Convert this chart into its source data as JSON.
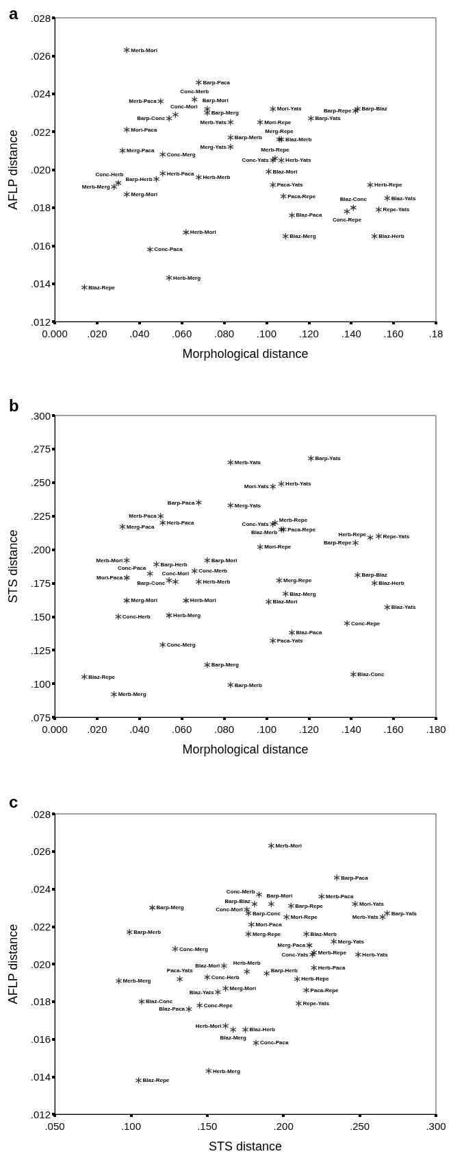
{
  "chart_data": [
    {
      "type": "scatter",
      "title": "a",
      "xlabel": "Morphological distance",
      "ylabel": "AFLP distance",
      "marker": "cross",
      "x": [
        0.143,
        0.054,
        0.048,
        0.083,
        0.072,
        0.072,
        0.068,
        0.142,
        0.121,
        0.141,
        0.151,
        0.107,
        0.109,
        0.101,
        0.112,
        0.014,
        0.157,
        0.03,
        0.066,
        0.051,
        0.057,
        0.045,
        0.138,
        0.103,
        0.068,
        0.054,
        0.062,
        0.051,
        0.149,
        0.107,
        0.028,
        0.034,
        0.05,
        0.104,
        0.083,
        0.034,
        0.032,
        0.106,
        0.083,
        0.034,
        0.097,
        0.103,
        0.108,
        0.103,
        0.153
      ],
      "series": [
        {
          "color": "#000000",
          "values": [
            0.0232,
            0.0227,
            0.0195,
            0.0217,
            0.023,
            0.0232,
            0.0246,
            0.0231,
            0.0227,
            0.018,
            0.0165,
            0.0216,
            0.0165,
            0.0199,
            0.0176,
            0.0138,
            0.0185,
            0.0193,
            0.0237,
            0.0208,
            0.0229,
            0.0158,
            0.0178,
            0.0205,
            0.0196,
            0.0143,
            0.0167,
            0.0198,
            0.0192,
            0.0205,
            0.0191,
            0.0263,
            0.0236,
            0.0206,
            0.0225,
            0.0187,
            0.021,
            0.0216,
            0.0212,
            0.0221,
            0.0225,
            0.0232,
            0.0186,
            0.0192,
            0.0179
          ]
        }
      ],
      "xlim": [
        0,
        0.18
      ],
      "xticks": [
        {
          "value": 0,
          "label": "0.000"
        },
        {
          "value": 0.02,
          "label": ".020"
        },
        {
          "value": 0.04,
          "label": ".040"
        },
        {
          "value": 0.06,
          "label": ".060"
        },
        {
          "value": 0.08,
          "label": ".080"
        },
        {
          "value": 0.1,
          "label": ".100"
        },
        {
          "value": 0.12,
          "label": ".120"
        },
        {
          "value": 0.14,
          "label": ".140"
        },
        {
          "value": 0.16,
          "label": ".160"
        },
        {
          "value": 0.18,
          "label": ".18"
        }
      ],
      "ylim": [
        0.012,
        0.028
      ],
      "yticks": [
        {
          "value": 0.012,
          "label": ".012"
        },
        {
          "value": 0.014,
          "label": ".014"
        },
        {
          "value": 0.016,
          "label": ".016"
        },
        {
          "value": 0.018,
          "label": ".018"
        },
        {
          "value": 0.02,
          "label": ".020"
        },
        {
          "value": 0.022,
          "label": ".022"
        },
        {
          "value": 0.024,
          "label": ".024"
        },
        {
          "value": 0.026,
          "label": ".026"
        },
        {
          "value": 0.028,
          "label": ".028"
        }
      ],
      "annotations": [
        {
          "text": "Barp-Blaz",
          "x": 0.143,
          "y": 0.0232
        },
        {
          "text": "Barp-Conc",
          "x": 0.054,
          "y": 0.0227
        },
        {
          "text": "Barp-Herb",
          "x": 0.048,
          "y": 0.0195
        },
        {
          "text": "Barp-Merb",
          "x": 0.083,
          "y": 0.0217
        },
        {
          "text": "Barp-Merg",
          "x": 0.072,
          "y": 0.023
        },
        {
          "text": "Barp-Mori",
          "x": 0.072,
          "y": 0.0232
        },
        {
          "text": "Barp-Paca",
          "x": 0.068,
          "y": 0.0246
        },
        {
          "text": "Barp-Repe",
          "x": 0.142,
          "y": 0.0231
        },
        {
          "text": "Barp-Yats",
          "x": 0.121,
          "y": 0.0227
        },
        {
          "text": "Blaz-Conc",
          "x": 0.141,
          "y": 0.018
        },
        {
          "text": "Blaz-Herb",
          "x": 0.151,
          "y": 0.0165
        },
        {
          "text": "Blaz-Merb",
          "x": 0.107,
          "y": 0.0216
        },
        {
          "text": "Blaz-Merg",
          "x": 0.109,
          "y": 0.0165
        },
        {
          "text": "Blaz-Mori",
          "x": 0.101,
          "y": 0.0199
        },
        {
          "text": "Blaz-Paca",
          "x": 0.112,
          "y": 0.0176
        },
        {
          "text": "Blaz-Repe",
          "x": 0.014,
          "y": 0.0138
        },
        {
          "text": "Blaz-Yats",
          "x": 0.157,
          "y": 0.0185
        },
        {
          "text": "Conc-Herb",
          "x": 0.03,
          "y": 0.0193
        },
        {
          "text": "Conc-Merb",
          "x": 0.066,
          "y": 0.0237
        },
        {
          "text": "Conc-Merg",
          "x": 0.051,
          "y": 0.0208
        },
        {
          "text": "Conc-Mori",
          "x": 0.057,
          "y": 0.0229
        },
        {
          "text": "Conc-Paca",
          "x": 0.045,
          "y": 0.0158
        },
        {
          "text": "Conc-Repe",
          "x": 0.138,
          "y": 0.0178
        },
        {
          "text": "Conc-Yats",
          "x": 0.103,
          "y": 0.0205
        },
        {
          "text": "Herb-Merb",
          "x": 0.068,
          "y": 0.0196
        },
        {
          "text": "Herb-Merg",
          "x": 0.054,
          "y": 0.0143
        },
        {
          "text": "Herb-Mori",
          "x": 0.062,
          "y": 0.0167
        },
        {
          "text": "Herb-Paca",
          "x": 0.051,
          "y": 0.0198
        },
        {
          "text": "Herb-Repe",
          "x": 0.149,
          "y": 0.0192
        },
        {
          "text": "Herb-Yats",
          "x": 0.107,
          "y": 0.0205
        },
        {
          "text": "Merb-Merg",
          "x": 0.028,
          "y": 0.0191
        },
        {
          "text": "Merb-Mori",
          "x": 0.034,
          "y": 0.0263
        },
        {
          "text": "Merb-Paca",
          "x": 0.05,
          "y": 0.0236
        },
        {
          "text": "Merb-Repe",
          "x": 0.104,
          "y": 0.0206
        },
        {
          "text": "Merb-Yats",
          "x": 0.083,
          "y": 0.0225
        },
        {
          "text": "Merg-Mori",
          "x": 0.034,
          "y": 0.0187
        },
        {
          "text": "Merg-Paca",
          "x": 0.032,
          "y": 0.021
        },
        {
          "text": "Merg-Repe",
          "x": 0.106,
          "y": 0.0216
        },
        {
          "text": "Merg-Yats",
          "x": 0.083,
          "y": 0.0212
        },
        {
          "text": "Mori-Paca",
          "x": 0.034,
          "y": 0.0221
        },
        {
          "text": "Mori-Repe",
          "x": 0.097,
          "y": 0.0225
        },
        {
          "text": "Mori-Yats",
          "x": 0.103,
          "y": 0.0232
        },
        {
          "text": "Paca-Repe",
          "x": 0.108,
          "y": 0.0186
        },
        {
          "text": "Paca-Yats",
          "x": 0.103,
          "y": 0.0192
        },
        {
          "text": "Repe-Yats",
          "x": 0.153,
          "y": 0.0179
        }
      ]
    },
    {
      "type": "scatter",
      "title": "b",
      "xlabel": "Morphological distance",
      "ylabel": "STS distance",
      "marker": "cross",
      "x": [
        0.143,
        0.054,
        0.048,
        0.083,
        0.072,
        0.072,
        0.068,
        0.142,
        0.121,
        0.141,
        0.151,
        0.107,
        0.109,
        0.101,
        0.112,
        0.014,
        0.157,
        0.03,
        0.066,
        0.051,
        0.057,
        0.045,
        0.138,
        0.103,
        0.068,
        0.054,
        0.062,
        0.051,
        0.149,
        0.107,
        0.028,
        0.034,
        0.05,
        0.104,
        0.083,
        0.034,
        0.032,
        0.106,
        0.083,
        0.034,
        0.097,
        0.103,
        0.108,
        0.103,
        0.153
      ],
      "series": [
        {
          "color": "#000000",
          "values": [
            0.181,
            0.177,
            0.189,
            0.099,
            0.114,
            0.192,
            0.235,
            0.205,
            0.268,
            0.107,
            0.175,
            0.215,
            0.167,
            0.161,
            0.138,
            0.105,
            0.157,
            0.15,
            0.184,
            0.129,
            0.176,
            0.182,
            0.145,
            0.219,
            0.176,
            0.151,
            0.162,
            0.22,
            0.209,
            0.249,
            0.092,
            0.192,
            0.225,
            0.22,
            0.265,
            0.162,
            0.217,
            0.177,
            0.233,
            0.179,
            0.202,
            0.247,
            0.215,
            0.132,
            0.21
          ]
        }
      ],
      "xlim": [
        0,
        0.18
      ],
      "xticks": [
        {
          "value": 0,
          "label": "0.000"
        },
        {
          "value": 0.02,
          "label": ".020"
        },
        {
          "value": 0.04,
          "label": ".040"
        },
        {
          "value": 0.06,
          "label": ".060"
        },
        {
          "value": 0.08,
          "label": ".080"
        },
        {
          "value": 0.1,
          "label": ".100"
        },
        {
          "value": 0.12,
          "label": ".120"
        },
        {
          "value": 0.14,
          "label": ".140"
        },
        {
          "value": 0.16,
          "label": ".160"
        },
        {
          "value": 0.18,
          "label": ".180"
        }
      ],
      "ylim": [
        0.075,
        0.3
      ],
      "yticks": [
        {
          "value": 0.075,
          "label": ".075"
        },
        {
          "value": 0.1,
          "label": ".100"
        },
        {
          "value": 0.125,
          "label": ".125"
        },
        {
          "value": 0.15,
          "label": ".150"
        },
        {
          "value": 0.175,
          "label": ".175"
        },
        {
          "value": 0.2,
          "label": ".200"
        },
        {
          "value": 0.225,
          "label": ".225"
        },
        {
          "value": 0.25,
          "label": ".250"
        },
        {
          "value": 0.275,
          "label": ".275"
        },
        {
          "value": 0.3,
          "label": ".300"
        }
      ],
      "annotations": [
        {
          "text": "Barp-Blaz",
          "x": 0.143,
          "y": 0.181
        },
        {
          "text": "Barp-Conc",
          "x": 0.054,
          "y": 0.177
        },
        {
          "text": "Barp-Herb",
          "x": 0.048,
          "y": 0.189
        },
        {
          "text": "Barp-Merb",
          "x": 0.083,
          "y": 0.099
        },
        {
          "text": "Barp-Merg",
          "x": 0.072,
          "y": 0.114
        },
        {
          "text": "Barp-Mori",
          "x": 0.072,
          "y": 0.192
        },
        {
          "text": "Barp-Paca",
          "x": 0.068,
          "y": 0.235
        },
        {
          "text": "Barp-Repe",
          "x": 0.142,
          "y": 0.205
        },
        {
          "text": "Barp-Yats",
          "x": 0.121,
          "y": 0.268
        },
        {
          "text": "Blaz-Conc",
          "x": 0.141,
          "y": 0.107
        },
        {
          "text": "Blaz-Herb",
          "x": 0.151,
          "y": 0.175
        },
        {
          "text": "Blaz-Merb",
          "x": 0.107,
          "y": 0.215
        },
        {
          "text": "Blaz-Merg",
          "x": 0.109,
          "y": 0.167
        },
        {
          "text": "Blaz-Mori",
          "x": 0.101,
          "y": 0.161
        },
        {
          "text": "Blaz-Paca",
          "x": 0.112,
          "y": 0.138
        },
        {
          "text": "Blaz-Repe",
          "x": 0.014,
          "y": 0.105
        },
        {
          "text": "Blaz-Yats",
          "x": 0.157,
          "y": 0.157
        },
        {
          "text": "Conc-Herb",
          "x": 0.03,
          "y": 0.15
        },
        {
          "text": "Conc-Merb",
          "x": 0.066,
          "y": 0.184
        },
        {
          "text": "Conc-Merg",
          "x": 0.051,
          "y": 0.129
        },
        {
          "text": "Conc-Mori",
          "x": 0.057,
          "y": 0.176
        },
        {
          "text": "Conc-Paca",
          "x": 0.045,
          "y": 0.182
        },
        {
          "text": "Conc-Repe",
          "x": 0.138,
          "y": 0.145
        },
        {
          "text": "Conc-Yats",
          "x": 0.103,
          "y": 0.219
        },
        {
          "text": "Herb-Merb",
          "x": 0.068,
          "y": 0.176
        },
        {
          "text": "Herb-Merg",
          "x": 0.054,
          "y": 0.151
        },
        {
          "text": "Herb-Mori",
          "x": 0.062,
          "y": 0.162
        },
        {
          "text": "Herb-Paca",
          "x": 0.051,
          "y": 0.22
        },
        {
          "text": "Herb-Repe",
          "x": 0.149,
          "y": 0.209
        },
        {
          "text": "Herb-Yats",
          "x": 0.107,
          "y": 0.249
        },
        {
          "text": "Merb-Merg",
          "x": 0.028,
          "y": 0.092
        },
        {
          "text": "Merb-Mori",
          "x": 0.034,
          "y": 0.192
        },
        {
          "text": "Merb-Paca",
          "x": 0.05,
          "y": 0.225
        },
        {
          "text": "Merb-Repe",
          "x": 0.104,
          "y": 0.22
        },
        {
          "text": "Merb-Yats",
          "x": 0.083,
          "y": 0.265
        },
        {
          "text": "Merg-Mori",
          "x": 0.034,
          "y": 0.162
        },
        {
          "text": "Merg-Paca",
          "x": 0.032,
          "y": 0.217
        },
        {
          "text": "Merg-Repe",
          "x": 0.106,
          "y": 0.177
        },
        {
          "text": "Merg-Yats",
          "x": 0.083,
          "y": 0.233
        },
        {
          "text": "Mori-Paca",
          "x": 0.034,
          "y": 0.179
        },
        {
          "text": "Mori-Repe",
          "x": 0.097,
          "y": 0.202
        },
        {
          "text": "Mori-Yats",
          "x": 0.103,
          "y": 0.247
        },
        {
          "text": "Paca-Repe",
          "x": 0.108,
          "y": 0.215
        },
        {
          "text": "Paca-Yats",
          "x": 0.103,
          "y": 0.132
        },
        {
          "text": "Repe-Yats",
          "x": 0.153,
          "y": 0.21
        }
      ]
    },
    {
      "type": "scatter",
      "title": "c",
      "xlabel": "STS distance",
      "ylabel": "AFLP distance",
      "marker": "cross",
      "x": [
        0.181,
        0.177,
        0.189,
        0.099,
        0.114,
        0.192,
        0.235,
        0.205,
        0.268,
        0.107,
        0.175,
        0.215,
        0.167,
        0.161,
        0.138,
        0.105,
        0.157,
        0.15,
        0.184,
        0.129,
        0.176,
        0.182,
        0.145,
        0.219,
        0.176,
        0.151,
        0.162,
        0.22,
        0.209,
        0.249,
        0.092,
        0.192,
        0.225,
        0.22,
        0.265,
        0.162,
        0.217,
        0.177,
        0.233,
        0.179,
        0.202,
        0.247,
        0.215,
        0.132,
        0.21
      ],
      "series": [
        {
          "color": "#000000",
          "values": [
            0.0232,
            0.0227,
            0.0195,
            0.0217,
            0.023,
            0.0232,
            0.0246,
            0.0231,
            0.0227,
            0.018,
            0.0165,
            0.0216,
            0.0165,
            0.0199,
            0.0176,
            0.0138,
            0.0185,
            0.0193,
            0.0237,
            0.0208,
            0.0229,
            0.0158,
            0.0178,
            0.0205,
            0.0196,
            0.0143,
            0.0167,
            0.0198,
            0.0192,
            0.0205,
            0.0191,
            0.0263,
            0.0236,
            0.0206,
            0.0225,
            0.0187,
            0.021,
            0.0216,
            0.0212,
            0.0221,
            0.0225,
            0.0232,
            0.0186,
            0.0192,
            0.0179
          ]
        }
      ],
      "xlim": [
        0.05,
        0.3
      ],
      "xticks": [
        {
          "value": 0.05,
          "label": ".050"
        },
        {
          "value": 0.1,
          "label": ".100"
        },
        {
          "value": 0.15,
          "label": ".150"
        },
        {
          "value": 0.2,
          "label": ".200"
        },
        {
          "value": 0.25,
          "label": ".250"
        },
        {
          "value": 0.3,
          "label": ".300"
        }
      ],
      "ylim": [
        0.012,
        0.028
      ],
      "yticks": [
        {
          "value": 0.012,
          "label": ".012"
        },
        {
          "value": 0.014,
          "label": ".014"
        },
        {
          "value": 0.016,
          "label": ".016"
        },
        {
          "value": 0.018,
          "label": ".018"
        },
        {
          "value": 0.02,
          "label": ".020"
        },
        {
          "value": 0.022,
          "label": ".022"
        },
        {
          "value": 0.024,
          "label": ".024"
        },
        {
          "value": 0.026,
          "label": ".026"
        },
        {
          "value": 0.028,
          "label": ".028"
        }
      ],
      "annotations": [
        {
          "text": "Barp-Blaz",
          "x": 0.181,
          "y": 0.0232
        },
        {
          "text": "Barp-Conc",
          "x": 0.177,
          "y": 0.0227
        },
        {
          "text": "Barp-Herb",
          "x": 0.189,
          "y": 0.0195
        },
        {
          "text": "Barp-Merb",
          "x": 0.099,
          "y": 0.0217
        },
        {
          "text": "Barp-Merg",
          "x": 0.114,
          "y": 0.023
        },
        {
          "text": "Barp-Mori",
          "x": 0.192,
          "y": 0.0232
        },
        {
          "text": "Barp-Paca",
          "x": 0.235,
          "y": 0.0246
        },
        {
          "text": "Barp-Repe",
          "x": 0.205,
          "y": 0.0231
        },
        {
          "text": "Barp-Yats",
          "x": 0.268,
          "y": 0.0227
        },
        {
          "text": "Blaz-Conc",
          "x": 0.107,
          "y": 0.018
        },
        {
          "text": "Blaz-Herb",
          "x": 0.175,
          "y": 0.0165
        },
        {
          "text": "Blaz-Merb",
          "x": 0.215,
          "y": 0.0216
        },
        {
          "text": "Blaz-Merg",
          "x": 0.167,
          "y": 0.0165
        },
        {
          "text": "Blaz-Mori",
          "x": 0.161,
          "y": 0.0199
        },
        {
          "text": "Blaz-Paca",
          "x": 0.138,
          "y": 0.0176
        },
        {
          "text": "Blaz-Repe",
          "x": 0.105,
          "y": 0.0138
        },
        {
          "text": "Blaz-Yats",
          "x": 0.157,
          "y": 0.0185
        },
        {
          "text": "Conc-Herb",
          "x": 0.15,
          "y": 0.0193
        },
        {
          "text": "Conc-Merb",
          "x": 0.184,
          "y": 0.0237
        },
        {
          "text": "Conc-Merg",
          "x": 0.129,
          "y": 0.0208
        },
        {
          "text": "Conc-Mori",
          "x": 0.176,
          "y": 0.0229
        },
        {
          "text": "Conc-Paca",
          "x": 0.182,
          "y": 0.0158
        },
        {
          "text": "Conc-Repe",
          "x": 0.145,
          "y": 0.0178
        },
        {
          "text": "Conc-Yats",
          "x": 0.219,
          "y": 0.0205
        },
        {
          "text": "Herb-Merb",
          "x": 0.176,
          "y": 0.0196
        },
        {
          "text": "Herb-Merg",
          "x": 0.151,
          "y": 0.0143
        },
        {
          "text": "Herb-Mori",
          "x": 0.162,
          "y": 0.0167
        },
        {
          "text": "Herb-Paca",
          "x": 0.22,
          "y": 0.0198
        },
        {
          "text": "Herb-Repe",
          "x": 0.209,
          "y": 0.0192
        },
        {
          "text": "Herb-Yats",
          "x": 0.249,
          "y": 0.0205
        },
        {
          "text": "Merb-Merg",
          "x": 0.092,
          "y": 0.0191
        },
        {
          "text": "Merb-Mori",
          "x": 0.192,
          "y": 0.0263
        },
        {
          "text": "Merb-Paca",
          "x": 0.225,
          "y": 0.0236
        },
        {
          "text": "Merb-Repe",
          "x": 0.22,
          "y": 0.0206
        },
        {
          "text": "Merb-Yats",
          "x": 0.265,
          "y": 0.0225
        },
        {
          "text": "Merg-Mori",
          "x": 0.162,
          "y": 0.0187
        },
        {
          "text": "Merg-Paca",
          "x": 0.217,
          "y": 0.021
        },
        {
          "text": "Merg-Repe",
          "x": 0.177,
          "y": 0.0216
        },
        {
          "text": "Merg-Yats",
          "x": 0.233,
          "y": 0.0212
        },
        {
          "text": "Mori-Paca",
          "x": 0.179,
          "y": 0.0221
        },
        {
          "text": "Mori-Repe",
          "x": 0.202,
          "y": 0.0225
        },
        {
          "text": "Mori-Yats",
          "x": 0.247,
          "y": 0.0232
        },
        {
          "text": "Paca-Repe",
          "x": 0.215,
          "y": 0.0186
        },
        {
          "text": "Paca-Yats",
          "x": 0.132,
          "y": 0.0192
        },
        {
          "text": "Repe-Yats",
          "x": 0.21,
          "y": 0.0179
        }
      ]
    }
  ]
}
